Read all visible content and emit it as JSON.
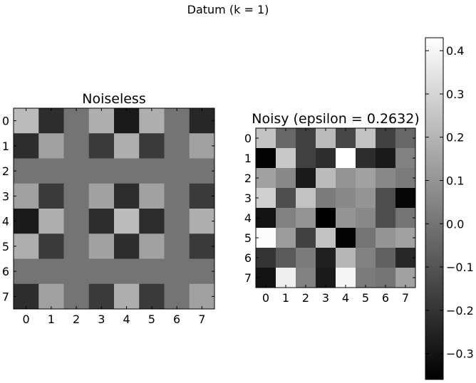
{
  "figure": {
    "title": "Datum (k = 1)"
  },
  "chart_data": [
    {
      "type": "heatmap",
      "title": "Noiseless",
      "x_ticks": [
        "0",
        "1",
        "2",
        "3",
        "4",
        "5",
        "6",
        "7"
      ],
      "y_ticks": [
        "0",
        "1",
        "2",
        "3",
        "4",
        "5",
        "6",
        "7"
      ],
      "colormap": "gray",
      "vmin": -0.36,
      "vmax": 0.43,
      "values": [
        [
          0.22,
          -0.22,
          0.0,
          0.18,
          -0.28,
          0.18,
          0.0,
          -0.24
        ],
        [
          -0.22,
          0.14,
          0.0,
          -0.18,
          0.18,
          -0.18,
          0.0,
          0.14
        ],
        [
          0.0,
          0.0,
          0.0,
          0.0,
          0.0,
          0.0,
          0.0,
          0.0
        ],
        [
          0.14,
          -0.18,
          0.0,
          0.14,
          -0.22,
          0.14,
          0.0,
          -0.18
        ],
        [
          -0.28,
          0.18,
          0.0,
          -0.22,
          0.22,
          -0.22,
          0.0,
          0.18
        ],
        [
          0.18,
          -0.18,
          0.0,
          0.14,
          -0.22,
          0.14,
          0.0,
          -0.18
        ],
        [
          0.0,
          0.0,
          0.0,
          0.0,
          0.0,
          0.0,
          0.0,
          0.0
        ],
        [
          -0.22,
          0.14,
          0.0,
          -0.18,
          0.18,
          -0.18,
          0.0,
          0.14
        ]
      ]
    },
    {
      "type": "heatmap",
      "title": "Noisy (epsilon = 0.2632)",
      "x_ticks": [
        "0",
        "1",
        "2",
        "3",
        "4",
        "5",
        "6",
        "7"
      ],
      "y_ticks": [
        "0",
        "1",
        "2",
        "3",
        "4",
        "5",
        "6",
        "7"
      ],
      "colormap": "gray",
      "vmin": -0.36,
      "vmax": 0.43,
      "values": [
        [
          0.24,
          -0.04,
          -0.16,
          0.22,
          -0.14,
          0.24,
          -0.16,
          -0.04
        ],
        [
          -0.35,
          0.26,
          -0.16,
          -0.22,
          0.43,
          -0.22,
          -0.28,
          0.04
        ],
        [
          0.14,
          0.06,
          -0.28,
          0.22,
          0.1,
          0.14,
          0.06,
          0.02
        ],
        [
          0.28,
          -0.12,
          0.24,
          0.02,
          0.06,
          0.1,
          -0.12,
          -0.34
        ],
        [
          -0.3,
          0.04,
          0.1,
          -0.36,
          0.1,
          0.06,
          -0.12,
          0.0
        ],
        [
          0.42,
          0.12,
          -0.16,
          0.24,
          -0.35,
          0.0,
          0.1,
          0.14
        ],
        [
          -0.2,
          -0.08,
          0.02,
          -0.26,
          0.2,
          0.04,
          -0.06,
          -0.24
        ],
        [
          -0.3,
          0.38,
          0.04,
          -0.28,
          0.4,
          0.02,
          0.0,
          0.14
        ]
      ]
    }
  ],
  "colorbar": {
    "vmin": -0.36,
    "vmax": 0.43,
    "ticks": [
      0.4,
      0.3,
      0.2,
      0.1,
      0.0,
      -0.1,
      -0.2,
      -0.3
    ],
    "tick_labels": [
      "0.4",
      "0.3",
      "0.2",
      "0.1",
      "0.0",
      "−0.1",
      "−0.2",
      "−0.3"
    ]
  }
}
